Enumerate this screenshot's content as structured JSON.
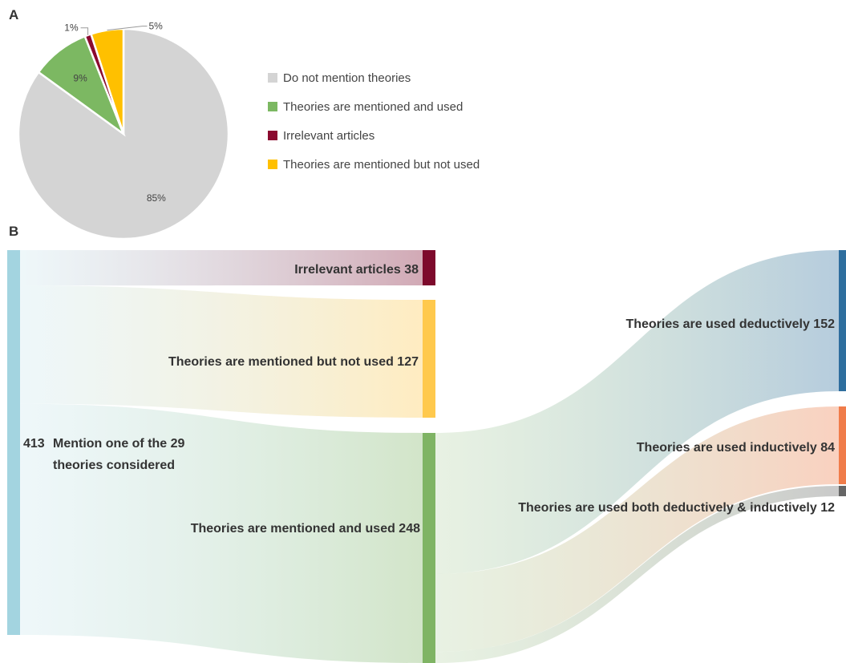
{
  "panels": {
    "a": "A",
    "b": "B"
  },
  "chart_data": [
    {
      "type": "pie",
      "labels": [
        "Do not mention theories",
        "Theories are mentioned and used",
        "Irrelevant articles",
        "Theories are mentioned but not used"
      ],
      "values": [
        85,
        9,
        1,
        5
      ],
      "value_labels": [
        "85%",
        "9%",
        "1%",
        "5%"
      ],
      "colors": [
        "#d4d4d4",
        "#7cb862",
        "#8b0a2f",
        "#ffc000"
      ],
      "legend_position": "right"
    },
    {
      "type": "sankey",
      "nodes": [
        {
          "id": "root",
          "label_value": "413",
          "label": "Mention one of the 29",
          "label_line2": "theories considered",
          "value": 413,
          "color": "#a3d4e0"
        },
        {
          "id": "irrelevant",
          "label": "Irrelevant articles 38",
          "value": 38,
          "color": "#7d0a2c"
        },
        {
          "id": "not_used",
          "label": "Theories are mentioned but not used 127",
          "value": 127,
          "color": "#ffc94d"
        },
        {
          "id": "used",
          "label": "Theories are mentioned and used 248",
          "value": 248,
          "color": "#7fb464"
        },
        {
          "id": "deductive",
          "label": "Theories are used deductively 152",
          "value": 152,
          "color": "#2e6e9e"
        },
        {
          "id": "inductive",
          "label": "Theories are used inductively 84",
          "value": 84,
          "color": "#f07c4a"
        },
        {
          "id": "both",
          "label": "Theories are used both deductively & inductively 12",
          "value": 12,
          "color": "#666666"
        }
      ],
      "links": [
        {
          "source": "root",
          "target": "irrelevant",
          "value": 38
        },
        {
          "source": "root",
          "target": "not_used",
          "value": 127
        },
        {
          "source": "root",
          "target": "used",
          "value": 248
        },
        {
          "source": "used",
          "target": "deductive",
          "value": 152
        },
        {
          "source": "used",
          "target": "inductive",
          "value": 84
        },
        {
          "source": "used",
          "target": "both",
          "value": 12
        }
      ]
    }
  ]
}
